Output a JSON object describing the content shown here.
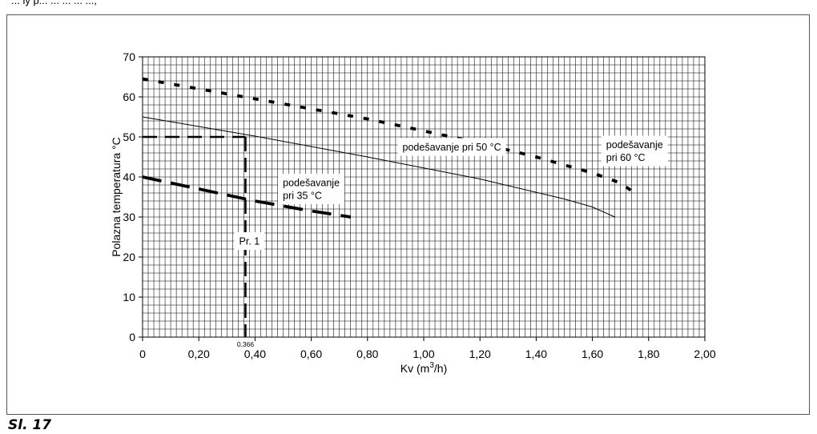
{
  "page": {
    "top_fragment": "... iy   p... ... ... ... ...,",
    "caption": "Sl. 17"
  },
  "chart_data": {
    "type": "line",
    "xlabel": "Kv (m³/h)",
    "xlabel_main": "Kv (m",
    "xlabel_sup": "3",
    "xlabel_tail": "/h)",
    "ylabel": "Polazna temperatura °C",
    "xlim": [
      0,
      2.0
    ],
    "ylim": [
      0,
      70
    ],
    "grid": true,
    "x_ticks": [
      {
        "value": 0,
        "label": "0"
      },
      {
        "value": 0.2,
        "label": "0,20"
      },
      {
        "value": 0.4,
        "label": "0,40"
      },
      {
        "value": 0.6,
        "label": "0,60"
      },
      {
        "value": 0.8,
        "label": "0,80"
      },
      {
        "value": 1.0,
        "label": "1,00"
      },
      {
        "value": 1.2,
        "label": "1,20"
      },
      {
        "value": 1.4,
        "label": "1,40"
      },
      {
        "value": 1.6,
        "label": "1,60"
      },
      {
        "value": 1.8,
        "label": "1,80"
      },
      {
        "value": 2.0,
        "label": "2,00"
      }
    ],
    "y_ticks": [
      {
        "value": 0,
        "label": "0"
      },
      {
        "value": 10,
        "label": "10"
      },
      {
        "value": 20,
        "label": "20"
      },
      {
        "value": 30,
        "label": "30"
      },
      {
        "value": 40,
        "label": "40"
      },
      {
        "value": 50,
        "label": "50"
      },
      {
        "value": 60,
        "label": "60"
      },
      {
        "value": 70,
        "label": "70"
      }
    ],
    "series": [
      {
        "name": "podešavanje pri 60 °C",
        "style": "dotted",
        "x": [
          0,
          0.2,
          0.4,
          0.6,
          0.8,
          1.0,
          1.2,
          1.4,
          1.6,
          1.7,
          1.75
        ],
        "y": [
          64.5,
          62,
          59.5,
          57,
          54.5,
          51.5,
          48.5,
          45,
          41,
          38.5,
          36
        ]
      },
      {
        "name": "podešavanje pri 50 °C",
        "style": "solid",
        "x": [
          0,
          0.4,
          0.8,
          1.2,
          1.5,
          1.6,
          1.68
        ],
        "y": [
          55,
          50.2,
          45,
          39.5,
          34.5,
          32.5,
          30
        ]
      },
      {
        "name": "podešavanje pri 35 °C",
        "style": "dashed",
        "x": [
          0,
          0.2,
          0.4,
          0.6,
          0.74
        ],
        "y": [
          40,
          37,
          34,
          31.5,
          30
        ]
      }
    ],
    "annotations": [
      {
        "text": "podešavanje pri 50 °C",
        "x": 1.1,
        "y": 47.5
      },
      {
        "text_line1": "podešavanje",
        "text_line2": "pri 60 °C",
        "x": 1.75,
        "y": 46.5
      },
      {
        "text_line1": "podešavanje",
        "text_line2": "pri 35 °C",
        "x": 0.6,
        "y": 37
      },
      {
        "text": "Pr. 1",
        "x": 0.38,
        "y": 24
      }
    ],
    "example_marker": {
      "x": 0.366,
      "y": 50,
      "label": "0.366"
    }
  }
}
